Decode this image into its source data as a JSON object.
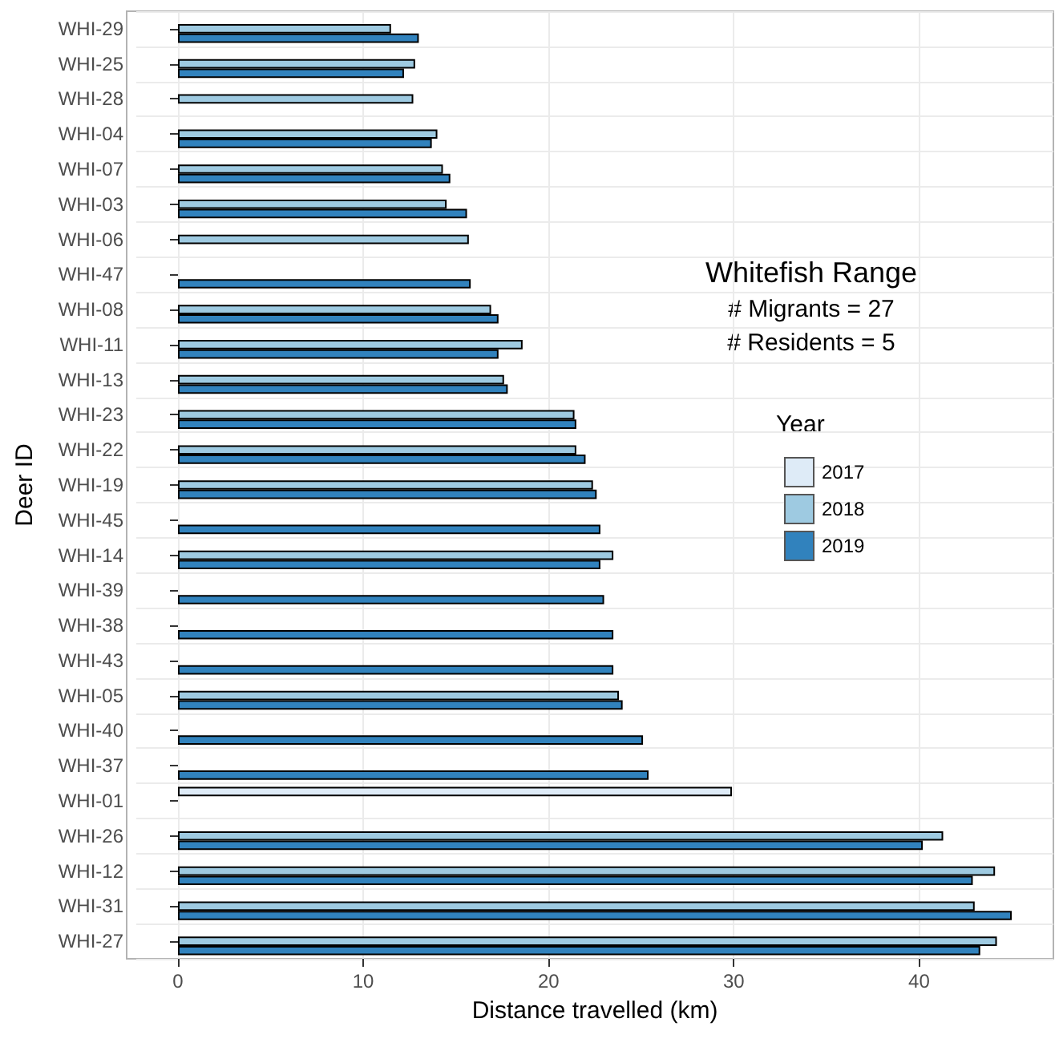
{
  "chart_data": {
    "type": "bar",
    "orientation": "horizontal",
    "xlabel": "Distance travelled (km)",
    "ylabel": "Deer ID",
    "legend_title": "Year",
    "legend": "right",
    "grid": true,
    "annotations": [
      "Whitefish Range",
      "# Migrants = 27",
      "# Residents = 5"
    ],
    "categories": [
      "WHI-29",
      "WHI-25",
      "WHI-28",
      "WHI-04",
      "WHI-07",
      "WHI-03",
      "WHI-06",
      "WHI-47",
      "WHI-08",
      "WHI-11",
      "WHI-13",
      "WHI-23",
      "WHI-22",
      "WHI-19",
      "WHI-45",
      "WHI-14",
      "WHI-39",
      "WHI-38",
      "WHI-43",
      "WHI-05",
      "WHI-40",
      "WHI-37",
      "WHI-01",
      "WHI-26",
      "WHI-12",
      "WHI-31",
      "WHI-27"
    ],
    "xlim": [
      -2.25,
      47.25
    ],
    "xticks": [
      0,
      10,
      20,
      30,
      40
    ],
    "series": [
      {
        "name": "2017",
        "color": "#deebf7",
        "values": [
          null,
          null,
          null,
          null,
          null,
          null,
          null,
          null,
          null,
          null,
          null,
          null,
          null,
          null,
          null,
          null,
          null,
          null,
          null,
          null,
          null,
          null,
          29.9,
          null,
          null,
          null,
          null
        ]
      },
      {
        "name": "2018",
        "color": "#9ecae1",
        "values": [
          11.5,
          12.8,
          12.7,
          14.0,
          14.3,
          14.5,
          15.7,
          null,
          16.9,
          18.6,
          17.6,
          21.4,
          21.5,
          22.4,
          null,
          23.5,
          null,
          null,
          null,
          23.8,
          null,
          null,
          null,
          41.3,
          44.1,
          43.0,
          44.2
        ]
      },
      {
        "name": "2019",
        "color": "#3182bd",
        "values": [
          13.0,
          12.2,
          null,
          13.7,
          14.7,
          15.6,
          null,
          15.8,
          17.3,
          17.3,
          17.8,
          21.5,
          22.0,
          22.6,
          22.8,
          22.8,
          23.0,
          23.5,
          23.5,
          24.0,
          25.1,
          25.4,
          null,
          40.2,
          42.9,
          45.0,
          43.3
        ]
      }
    ]
  }
}
